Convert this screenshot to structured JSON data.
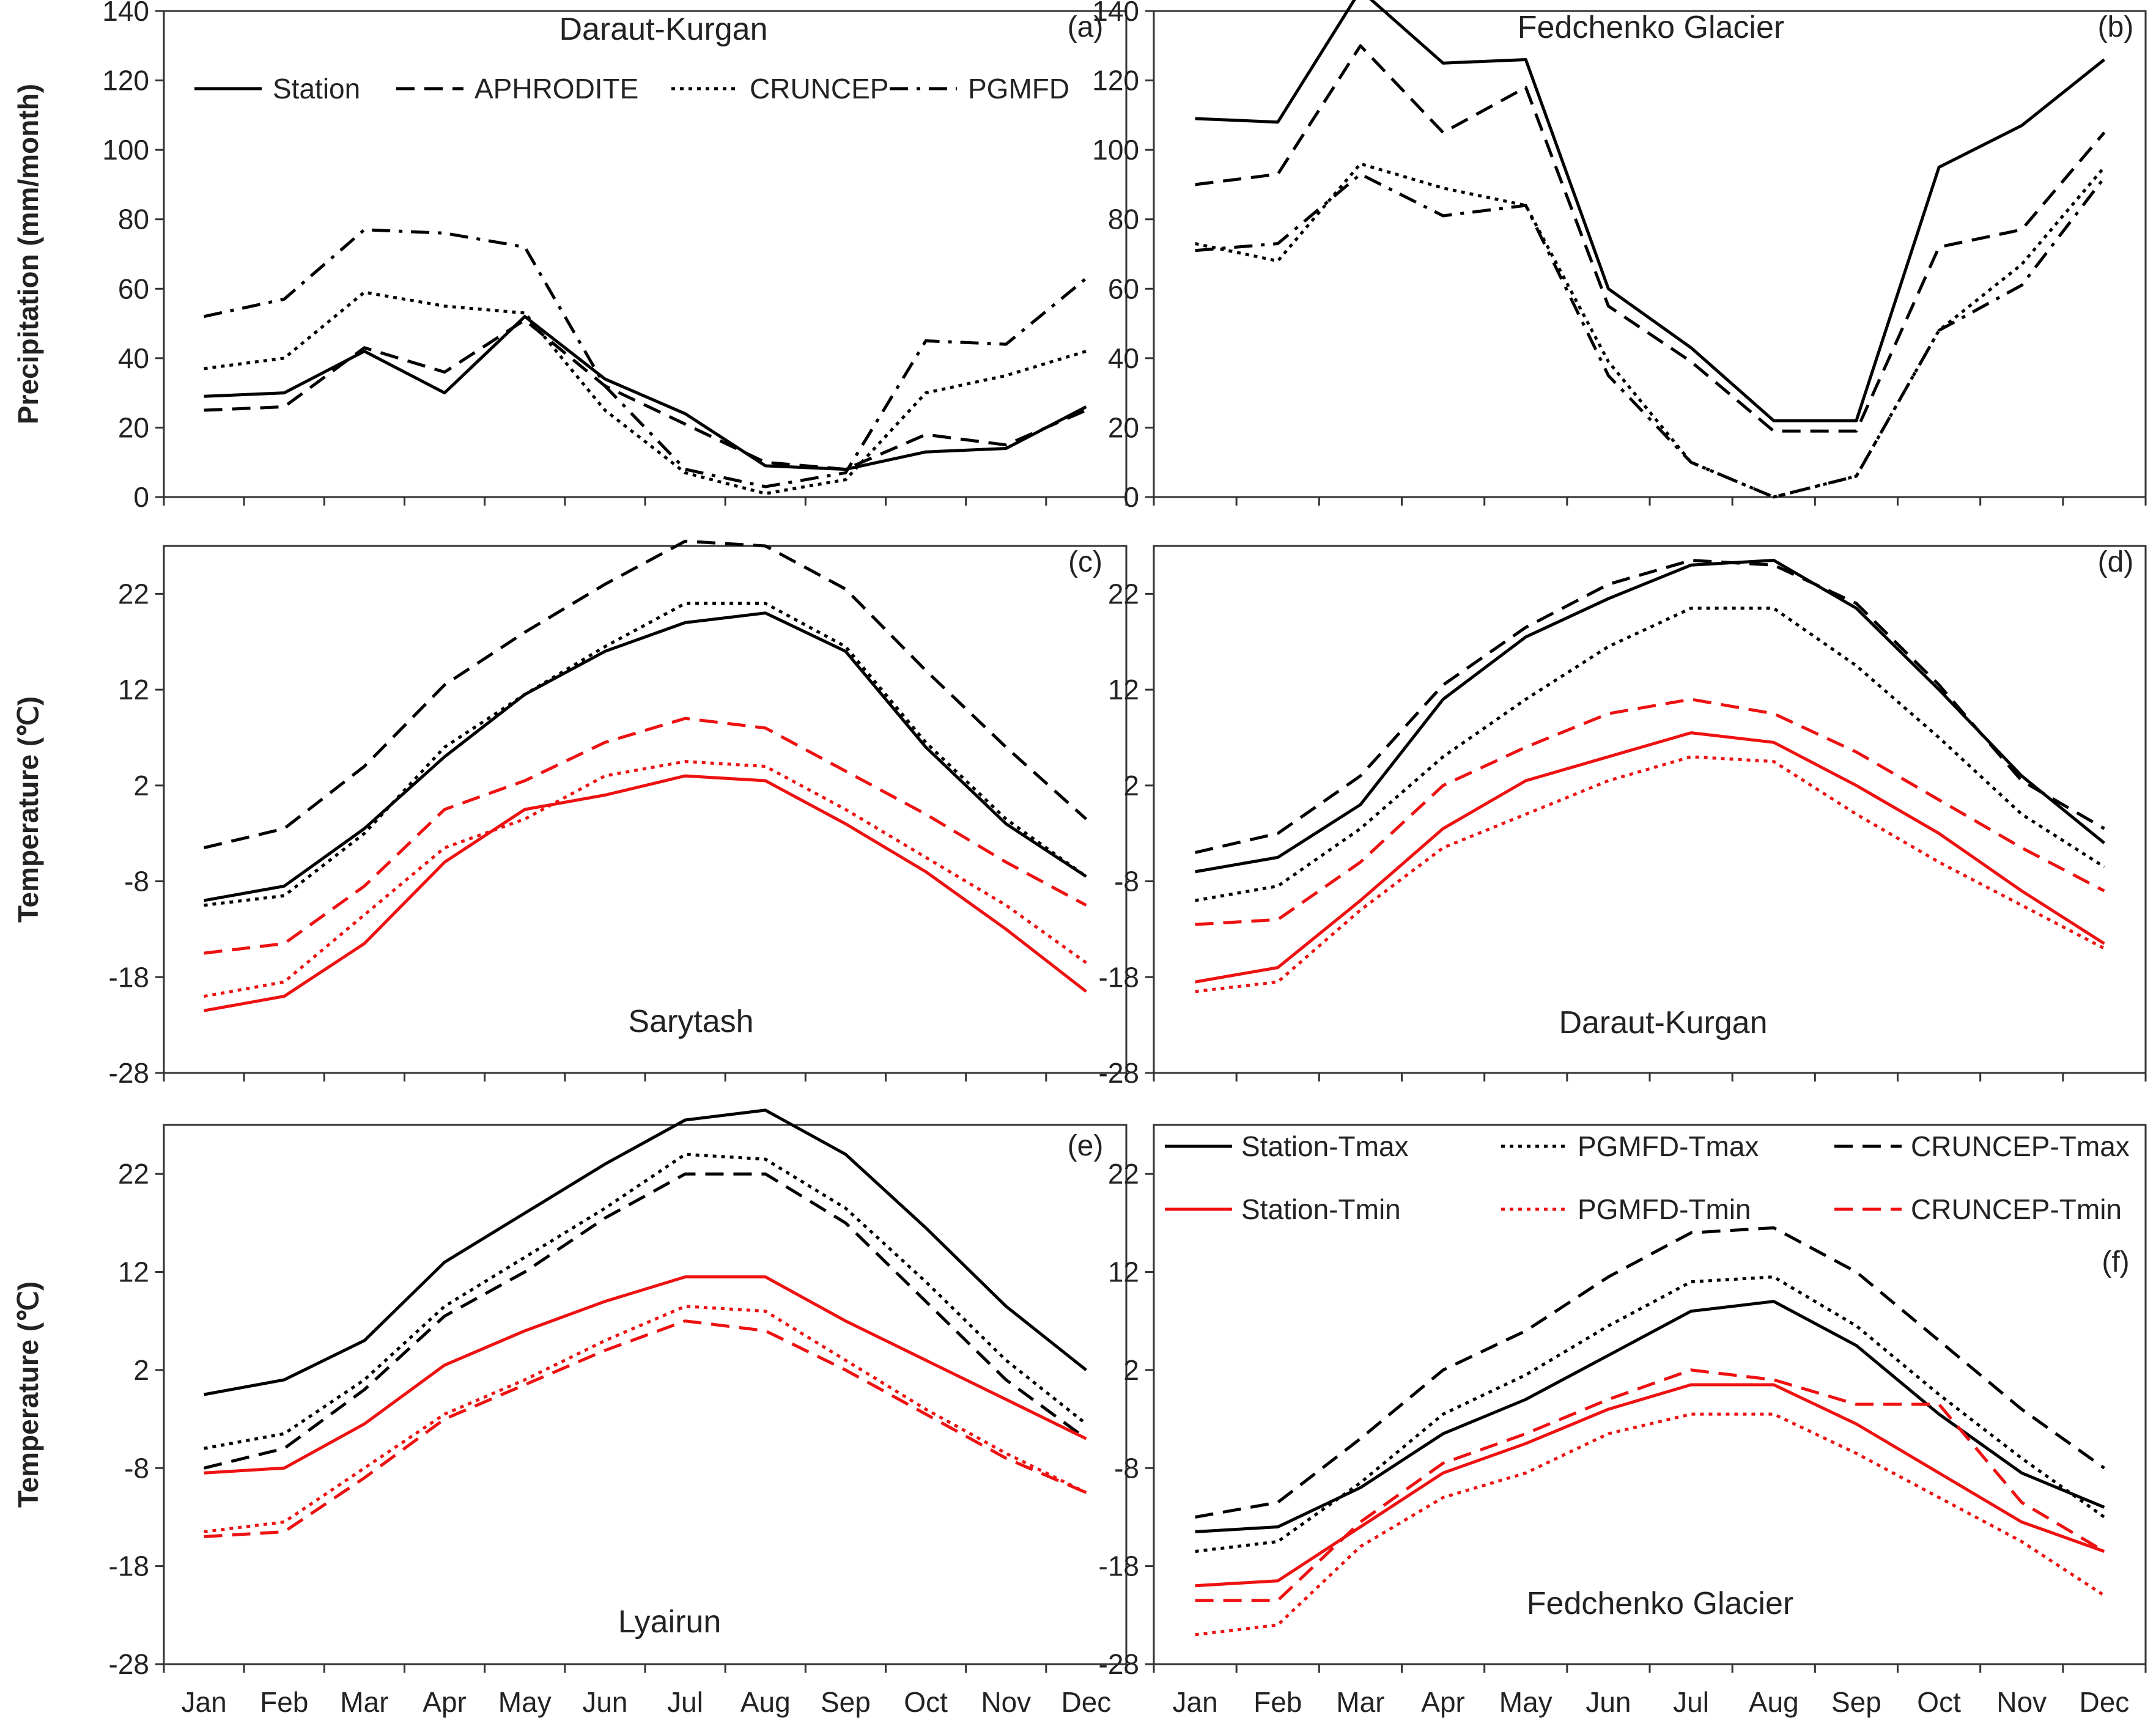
{
  "figure": {
    "months": [
      "Jan",
      "Feb",
      "Mar",
      "Apr",
      "May",
      "Jun",
      "Jul",
      "Aug",
      "Sep",
      "Oct",
      "Nov",
      "Dec"
    ]
  },
  "styles": {
    "Station": {
      "color": "#000000",
      "dash": "solid"
    },
    "APHRODITE": {
      "color": "#000000",
      "dash": "dashed"
    },
    "CRUNCEP": {
      "color": "#000000",
      "dash": "dotted"
    },
    "PGMFD": {
      "color": "#000000",
      "dash": "dashdot"
    },
    "Station-Tmax": {
      "color": "#000000",
      "dash": "solid"
    },
    "PGMFD-Tmax": {
      "color": "#000000",
      "dash": "dotted"
    },
    "CRUNCEP-Tmax": {
      "color": "#000000",
      "dash": "dashed"
    },
    "Station-Tmin": {
      "color": "#ee1111",
      "dash": "solid"
    },
    "PGMFD-Tmin": {
      "color": "#ee1111",
      "dash": "dotted"
    },
    "CRUNCEP-Tmin": {
      "color": "#ee1111",
      "dash": "dashed"
    }
  },
  "chart_data": [
    {
      "id": "a",
      "type": "line",
      "label": "(a)",
      "title": "Daraut-Kurgan",
      "xlabel": "",
      "ylabel": "Precipitation (mm/month)",
      "ylim": [
        0,
        140
      ],
      "yticks": [
        0,
        20,
        40,
        60,
        80,
        100,
        120,
        140
      ],
      "show_xticks": false,
      "categories": [
        "Jan",
        "Feb",
        "Mar",
        "Apr",
        "May",
        "Jun",
        "Jul",
        "Aug",
        "Sep",
        "Oct",
        "Nov",
        "Dec"
      ],
      "legend": [
        "Station",
        "APHRODITE",
        "CRUNCEP",
        "PGMFD"
      ],
      "series": [
        {
          "name": "Station",
          "values": [
            29,
            30,
            42,
            30,
            52,
            34,
            24,
            9,
            8,
            13,
            14,
            26
          ]
        },
        {
          "name": "APHRODITE",
          "values": [
            25,
            26,
            43,
            36,
            51,
            32,
            21,
            10,
            8,
            18,
            15,
            25
          ]
        },
        {
          "name": "CRUNCEP",
          "values": [
            37,
            40,
            59,
            55,
            53,
            25,
            7,
            1,
            5,
            30,
            35,
            42
          ]
        },
        {
          "name": "PGMFD",
          "values": [
            52,
            57,
            77,
            76,
            72,
            32,
            8,
            3,
            7,
            45,
            44,
            63
          ]
        }
      ]
    },
    {
      "id": "b",
      "type": "line",
      "label": "(b)",
      "title": "Fedchenko Glacier",
      "xlabel": "",
      "ylabel": "",
      "ylim": [
        0,
        140
      ],
      "yticks": [
        0,
        20,
        40,
        60,
        80,
        100,
        120,
        140
      ],
      "show_xticks": false,
      "categories": [
        "Jan",
        "Feb",
        "Mar",
        "Apr",
        "May",
        "Jun",
        "Jul",
        "Aug",
        "Sep",
        "Oct",
        "Nov",
        "Dec"
      ],
      "series": [
        {
          "name": "Station",
          "values": [
            109,
            108,
            146,
            125,
            126,
            60,
            43,
            22,
            22,
            95,
            107,
            126
          ]
        },
        {
          "name": "APHRODITE",
          "values": [
            90,
            93,
            130,
            105,
            118,
            55,
            39,
            19,
            19,
            72,
            77,
            105
          ]
        },
        {
          "name": "CRUNCEP",
          "values": [
            73,
            68,
            96,
            89,
            84,
            39,
            10,
            0,
            6,
            48,
            67,
            95
          ]
        },
        {
          "name": "PGMFD",
          "values": [
            71,
            73,
            93,
            81,
            84,
            35,
            10,
            0,
            6,
            48,
            61,
            92
          ]
        }
      ]
    },
    {
      "id": "c",
      "type": "line",
      "label": "(c)",
      "title": "Sarytash",
      "xlabel": "",
      "ylabel": "Temperature (℃)",
      "ylim": [
        -28,
        27
      ],
      "yticks": [
        -28,
        -18,
        -8,
        2,
        12,
        22
      ],
      "show_xticks": false,
      "categories": [
        "Jan",
        "Feb",
        "Mar",
        "Apr",
        "May",
        "Jun",
        "Jul",
        "Aug",
        "Sep",
        "Oct",
        "Nov",
        "Dec"
      ],
      "series": [
        {
          "name": "Station-Tmax",
          "values": [
            -10,
            -8.5,
            -2.5,
            5,
            11.5,
            16,
            19,
            20,
            16,
            6,
            -2,
            -7.5
          ]
        },
        {
          "name": "PGMFD-Tmax",
          "values": [
            -10.5,
            -9.5,
            -3,
            6,
            11.5,
            16.5,
            21,
            21,
            16.5,
            6.5,
            -1.5,
            -7.5
          ]
        },
        {
          "name": "CRUNCEP-Tmax",
          "values": [
            -4.5,
            -2.5,
            4,
            12.5,
            18,
            23,
            27.5,
            27,
            22.5,
            14,
            6,
            -1.5
          ]
        },
        {
          "name": "Station-Tmin",
          "values": [
            -21.5,
            -20,
            -14.5,
            -6,
            -0.5,
            1,
            3,
            2.5,
            -2,
            -7,
            -13,
            -19.5
          ]
        },
        {
          "name": "PGMFD-Tmin",
          "values": [
            -20,
            -18.5,
            -11.5,
            -4.5,
            -1.5,
            3,
            4.5,
            4,
            -0.5,
            -5.5,
            -10.5,
            -16.5
          ]
        },
        {
          "name": "CRUNCEP-Tmin",
          "values": [
            -15.5,
            -14.5,
            -8.5,
            -0.5,
            2.5,
            6.5,
            9,
            8,
            3.5,
            -1,
            -6,
            -10.5
          ]
        }
      ]
    },
    {
      "id": "d",
      "type": "line",
      "label": "(d)",
      "title": "Daraut-Kurgan",
      "xlabel": "",
      "ylabel": "",
      "ylim": [
        -28,
        27
      ],
      "yticks": [
        -28,
        -18,
        -8,
        2,
        12,
        22
      ],
      "show_xticks": false,
      "categories": [
        "Jan",
        "Feb",
        "Mar",
        "Apr",
        "May",
        "Jun",
        "Jul",
        "Aug",
        "Sep",
        "Oct",
        "Nov",
        "Dec"
      ],
      "series": [
        {
          "name": "Station-Tmax",
          "values": [
            -7,
            -5.5,
            0,
            11,
            17.5,
            21.5,
            25,
            25.5,
            20.5,
            12,
            3,
            -4
          ]
        },
        {
          "name": "PGMFD-Tmax",
          "values": [
            -10,
            -8.5,
            -2.5,
            5,
            11,
            16.5,
            20.5,
            20.5,
            14.5,
            7,
            -1,
            -6.5
          ]
        },
        {
          "name": "CRUNCEP-Tmax",
          "values": [
            -5,
            -3,
            3,
            12.5,
            18.5,
            23,
            25.5,
            25,
            21,
            12.5,
            2.5,
            -2.5
          ]
        },
        {
          "name": "Station-Tmin",
          "values": [
            -18.5,
            -17,
            -10,
            -2.5,
            2.5,
            5,
            7.5,
            6.5,
            2,
            -3,
            -9,
            -14.5
          ]
        },
        {
          "name": "PGMFD-Tmin",
          "values": [
            -19.5,
            -18.5,
            -11,
            -4.5,
            -1,
            2.5,
            5,
            4.5,
            -1,
            -6,
            -10.5,
            -15
          ]
        },
        {
          "name": "CRUNCEP-Tmin",
          "values": [
            -12.5,
            -12,
            -6,
            2,
            6,
            9.5,
            11,
            9.5,
            5.5,
            0.5,
            -4.5,
            -9
          ]
        }
      ]
    },
    {
      "id": "e",
      "type": "line",
      "label": "(e)",
      "title": "Lyairun",
      "xlabel": "",
      "ylabel": "Temperature (℃)",
      "ylim": [
        -28,
        27
      ],
      "yticks": [
        -28,
        -18,
        -8,
        2,
        12,
        22
      ],
      "show_xticks": true,
      "categories": [
        "Jan",
        "Feb",
        "Mar",
        "Apr",
        "May",
        "Jun",
        "Jul",
        "Aug",
        "Sep",
        "Oct",
        "Nov",
        "Dec"
      ],
      "series": [
        {
          "name": "Station-Tmax",
          "values": [
            -0.5,
            1,
            5,
            13,
            18,
            23,
            27.5,
            28.5,
            24,
            16.5,
            8.5,
            2
          ]
        },
        {
          "name": "PGMFD-Tmax",
          "values": [
            -6,
            -4.5,
            1,
            8.5,
            13.5,
            18.5,
            24,
            23.5,
            18.5,
            11,
            3,
            -3.5
          ]
        },
        {
          "name": "CRUNCEP-Tmax",
          "values": [
            -8,
            -6,
            0,
            7.5,
            12,
            17.5,
            22,
            22,
            17,
            9,
            1,
            -5
          ]
        },
        {
          "name": "Station-Tmin",
          "values": [
            -8.5,
            -8,
            -3.5,
            2.5,
            6,
            9,
            11.5,
            11.5,
            7,
            3,
            -1,
            -5
          ]
        },
        {
          "name": "PGMFD-Tmin",
          "values": [
            -14.5,
            -13.5,
            -8,
            -2.5,
            1,
            5,
            8.5,
            8,
            3,
            -2,
            -6.5,
            -10.5
          ]
        },
        {
          "name": "CRUNCEP-Tmin",
          "values": [
            -15,
            -14.5,
            -9,
            -3,
            0.5,
            4,
            7,
            6,
            2,
            -2.5,
            -7,
            -10.5
          ]
        }
      ]
    },
    {
      "id": "f",
      "type": "line",
      "label": "(f)",
      "title": "Fedchenko Glacier",
      "xlabel": "",
      "ylabel": "",
      "ylim": [
        -28,
        27
      ],
      "yticks": [
        -28,
        -18,
        -8,
        2,
        12,
        22
      ],
      "show_xticks": true,
      "categories": [
        "Jan",
        "Feb",
        "Mar",
        "Apr",
        "May",
        "Jun",
        "Jul",
        "Aug",
        "Sep",
        "Oct",
        "Nov",
        "Dec"
      ],
      "legend": [
        "Station-Tmax",
        "PGMFD-Tmax",
        "CRUNCEP-Tmax",
        "Station-Tmin",
        "PGMFD-Tmin",
        "CRUNCEP-Tmin"
      ],
      "series": [
        {
          "name": "Station-Tmax",
          "values": [
            -14.5,
            -14,
            -10,
            -4.5,
            -1,
            3.5,
            8,
            9,
            4.5,
            -2.5,
            -8.5,
            -12
          ]
        },
        {
          "name": "PGMFD-Tmax",
          "values": [
            -16.5,
            -15.5,
            -9.5,
            -2.5,
            1.5,
            6.5,
            11,
            11.5,
            6.5,
            -0.5,
            -7,
            -13
          ]
        },
        {
          "name": "CRUNCEP-Tmax",
          "values": [
            -13,
            -11.5,
            -5,
            2,
            6,
            11.5,
            16,
            16.5,
            12,
            5,
            -2,
            -8
          ]
        },
        {
          "name": "Station-Tmin",
          "values": [
            -20,
            -19.5,
            -14,
            -8.5,
            -5.5,
            -2,
            0.5,
            0.5,
            -3.5,
            -8.5,
            -13.5,
            -16.5
          ]
        },
        {
          "name": "PGMFD-Tmin",
          "values": [
            -25,
            -24,
            -16,
            -11,
            -8.5,
            -4.5,
            -2.5,
            -2.5,
            -6.5,
            -11,
            -15.5,
            -21
          ]
        },
        {
          "name": "CRUNCEP-Tmin",
          "values": [
            -21.5,
            -21.5,
            -13.5,
            -7.5,
            -4.5,
            -1,
            2,
            1,
            -1.5,
            -1.5,
            -11.5,
            -16.5
          ]
        }
      ]
    }
  ]
}
